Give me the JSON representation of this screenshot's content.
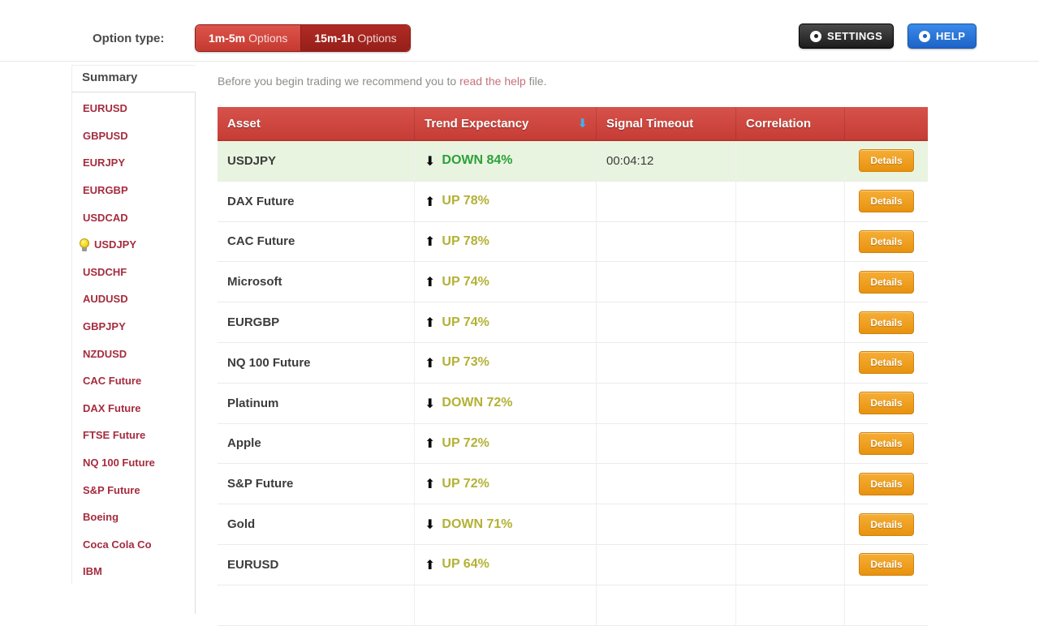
{
  "top_bar": {
    "option_type_label": "Option type:",
    "tabs": [
      {
        "label_bold": "1m-5m",
        "label_rest": "Options",
        "active": true
      },
      {
        "label_bold": "15m-1h",
        "label_rest": "Options",
        "active": false
      }
    ],
    "settings_label": "SETTINGS",
    "help_label": "HELP"
  },
  "sidebar": {
    "heading": "Summary",
    "items": [
      {
        "label": "EURUSD",
        "bulb": false
      },
      {
        "label": "GBPUSD",
        "bulb": false
      },
      {
        "label": "EURJPY",
        "bulb": false
      },
      {
        "label": "EURGBP",
        "bulb": false
      },
      {
        "label": "USDCAD",
        "bulb": false
      },
      {
        "label": "USDJPY",
        "bulb": true
      },
      {
        "label": "USDCHF",
        "bulb": false
      },
      {
        "label": "AUDUSD",
        "bulb": false
      },
      {
        "label": "GBPJPY",
        "bulb": false
      },
      {
        "label": "NZDUSD",
        "bulb": false
      },
      {
        "label": "CAC Future",
        "bulb": false
      },
      {
        "label": "DAX Future",
        "bulb": false
      },
      {
        "label": "FTSE Future",
        "bulb": false
      },
      {
        "label": "NQ 100 Future",
        "bulb": false
      },
      {
        "label": "S&P Future",
        "bulb": false
      },
      {
        "label": "Boeing",
        "bulb": false
      },
      {
        "label": "Coca Cola Co",
        "bulb": false
      },
      {
        "label": "IBM",
        "bulb": false
      }
    ]
  },
  "main": {
    "intro": {
      "before": "Before you begin trading we recommend you to ",
      "link": "read the help",
      "after": " file."
    },
    "table": {
      "headers": [
        "Asset",
        "Trend Expectancy",
        "Signal Timeout",
        "Correlation",
        ""
      ],
      "sort_icon": "⬇",
      "details_label": "Details",
      "rows": [
        {
          "asset": "USDJPY",
          "direction": "down",
          "trend": "DOWN 84%",
          "trend_color": "green",
          "timeout": "00:04:12",
          "correlation": "",
          "highlight": true
        },
        {
          "asset": "DAX Future",
          "direction": "up",
          "trend": "UP 78%",
          "trend_color": "olive",
          "timeout": "",
          "correlation": "",
          "highlight": false
        },
        {
          "asset": "CAC Future",
          "direction": "up",
          "trend": "UP 78%",
          "trend_color": "olive",
          "timeout": "",
          "correlation": "",
          "highlight": false
        },
        {
          "asset": "Microsoft",
          "direction": "up",
          "trend": "UP 74%",
          "trend_color": "olive",
          "timeout": "",
          "correlation": "",
          "highlight": false
        },
        {
          "asset": "EURGBP",
          "direction": "up",
          "trend": "UP 74%",
          "trend_color": "olive",
          "timeout": "",
          "correlation": "",
          "highlight": false
        },
        {
          "asset": "NQ 100 Future",
          "direction": "up",
          "trend": "UP 73%",
          "trend_color": "olive",
          "timeout": "",
          "correlation": "",
          "highlight": false
        },
        {
          "asset": "Platinum",
          "direction": "down",
          "trend": "DOWN 72%",
          "trend_color": "olive",
          "timeout": "",
          "correlation": "",
          "highlight": false
        },
        {
          "asset": "Apple",
          "direction": "up",
          "trend": "UP 72%",
          "trend_color": "olive",
          "timeout": "",
          "correlation": "",
          "highlight": false
        },
        {
          "asset": "S&P Future",
          "direction": "up",
          "trend": "UP 72%",
          "trend_color": "olive",
          "timeout": "",
          "correlation": "",
          "highlight": false
        },
        {
          "asset": "Gold",
          "direction": "down",
          "trend": "DOWN 71%",
          "trend_color": "olive",
          "timeout": "",
          "correlation": "",
          "highlight": false
        },
        {
          "asset": "EURUSD",
          "direction": "up",
          "trend": "UP 64%",
          "trend_color": "olive",
          "timeout": "",
          "correlation": "",
          "highlight": false
        }
      ]
    }
  },
  "colors": {
    "header_red": "#d14741",
    "active_tab_red": "#d94a42",
    "inactive_tab_red": "#a8241f",
    "settings_black": "#2a2a2a",
    "help_blue": "#2277dd",
    "sidebar_link_maroon": "#a52c3e",
    "trend_green": "#2ca03a",
    "trend_olive": "#b3b135",
    "details_orange": "#efa01e",
    "highlight_row_green": "#e9f4e0",
    "help_link_pink": "#c4737c",
    "sort_arrow_blue": "#41b0e8"
  }
}
